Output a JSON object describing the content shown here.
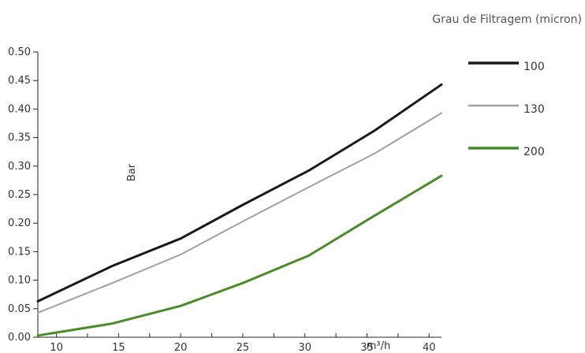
{
  "chart_data": {
    "type": "line",
    "legend_title": "Grau de Filtragem (micron)",
    "legend_position": "top-right",
    "xlabel": "m³/h",
    "ylabel": "Bar",
    "grid": false,
    "xlim": [
      8.5,
      41
    ],
    "ylim": [
      0,
      0.5
    ],
    "x_ticks": [
      "10",
      "15",
      "20",
      "25",
      "30",
      "35",
      "40"
    ],
    "y_ticks": [
      "0.00",
      "0.05",
      "0.10",
      "0.15",
      "0.20",
      "0.25",
      "0.30",
      "0.35",
      "0.40",
      "0.45",
      "0.50"
    ],
    "series": [
      {
        "name": "100",
        "color": "#1a1a1a",
        "points": [
          [
            8.5,
            0.063
          ],
          [
            14.5,
            0.125
          ],
          [
            20,
            0.173
          ],
          [
            25,
            0.232
          ],
          [
            30.3,
            0.292
          ],
          [
            35.6,
            0.362
          ],
          [
            41,
            0.443
          ]
        ]
      },
      {
        "name": "130",
        "color": "#a0a0a0",
        "points": [
          [
            8.5,
            0.043
          ],
          [
            14.5,
            0.095
          ],
          [
            20,
            0.145
          ],
          [
            25,
            0.203
          ],
          [
            30.3,
            0.263
          ],
          [
            35.6,
            0.322
          ],
          [
            41,
            0.393
          ]
        ]
      },
      {
        "name": "200",
        "color": "#4a8a2a",
        "points": [
          [
            8.5,
            0.003
          ],
          [
            14.5,
            0.024
          ],
          [
            20,
            0.055
          ],
          [
            25,
            0.095
          ],
          [
            30.3,
            0.143
          ],
          [
            35.6,
            0.213
          ],
          [
            41,
            0.283
          ]
        ]
      }
    ]
  }
}
